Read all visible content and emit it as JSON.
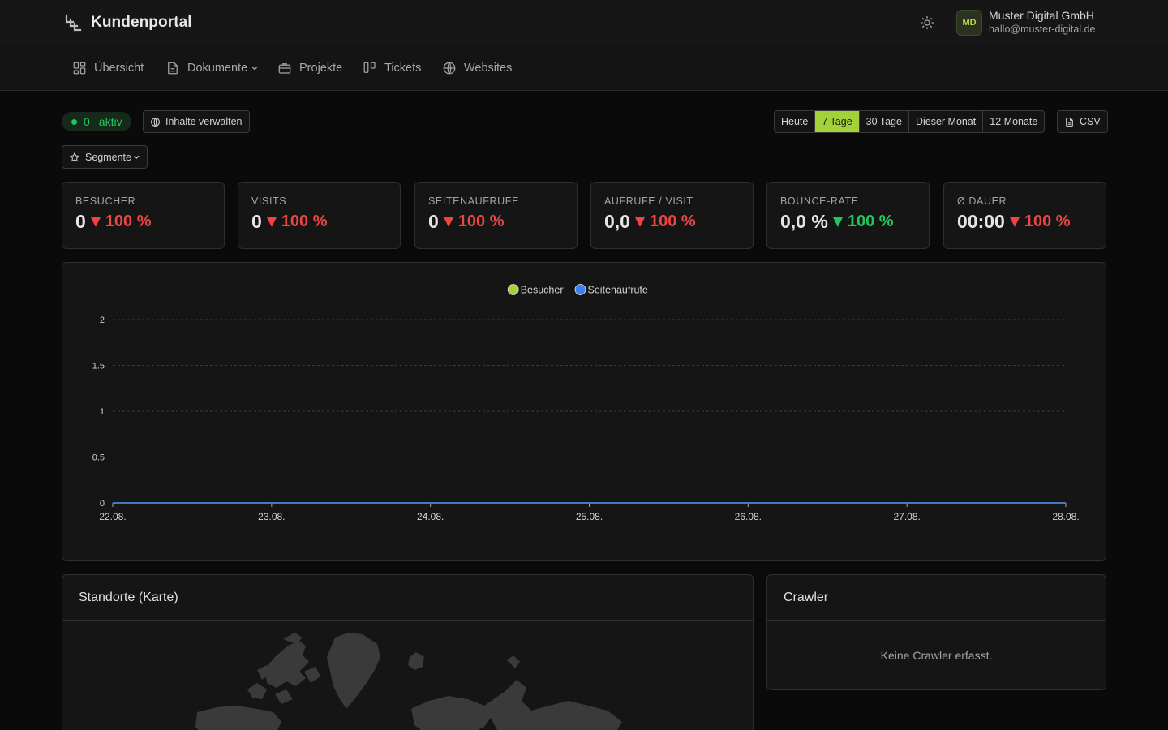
{
  "app": {
    "title": "Kundenportal"
  },
  "account": {
    "initials": "MD",
    "name": "Muster Digital GmbH",
    "email": "hallo@muster-digital.de"
  },
  "nav": {
    "items": [
      {
        "label": "Übersicht",
        "icon": "dashboard-icon"
      },
      {
        "label": "Dokumente",
        "icon": "document-icon",
        "has_dropdown": true
      },
      {
        "label": "Projekte",
        "icon": "briefcase-icon"
      },
      {
        "label": "Tickets",
        "icon": "kanban-icon"
      },
      {
        "label": "Websites",
        "icon": "globe-icon"
      }
    ]
  },
  "toolbar": {
    "live_count": "0",
    "live_label": "aktiv",
    "manage_content_label": "Inhalte verwalten",
    "segments_label": "Segmente",
    "ranges": [
      "Heute",
      "7 Tage",
      "30 Tage",
      "Dieser Monat",
      "12 Monate"
    ],
    "active_range": "7 Tage",
    "csv_label": "CSV"
  },
  "kpis": [
    {
      "label": "Besucher",
      "value": "0",
      "delta": "100 %",
      "trend": "down",
      "color": "#ef4444"
    },
    {
      "label": "Visits",
      "value": "0",
      "delta": "100 %",
      "trend": "down",
      "color": "#ef4444"
    },
    {
      "label": "Seitenaufrufe",
      "value": "0",
      "delta": "100 %",
      "trend": "down",
      "color": "#ef4444"
    },
    {
      "label": "Aufrufe / Visit",
      "value": "0,0",
      "delta": "100 %",
      "trend": "down",
      "color": "#ef4444"
    },
    {
      "label": "Bounce-Rate",
      "value": "0,0 %",
      "delta": "100 %",
      "trend": "down",
      "color": "#22c55e"
    },
    {
      "label": "Ø Dauer",
      "value": "00:00",
      "delta": "100 %",
      "trend": "down",
      "color": "#ef4444"
    }
  ],
  "chart_data": {
    "type": "line",
    "title": "",
    "xlabel": "",
    "ylabel": "",
    "x": [
      "22.08.",
      "23.08.",
      "24.08.",
      "25.08.",
      "26.08.",
      "27.08.",
      "28.08."
    ],
    "y_ticks": [
      "0",
      "0.5",
      "1",
      "1.5",
      "2"
    ],
    "ylim": [
      0,
      2
    ],
    "grid": true,
    "legend_position": "top-center",
    "series": [
      {
        "name": "Besucher",
        "color": "#a3d13a",
        "values": [
          0,
          0,
          0,
          0,
          0,
          0,
          0
        ]
      },
      {
        "name": "Seitenaufrufe",
        "color": "#3b82f6",
        "values": [
          0,
          0,
          0,
          0,
          0,
          0,
          0
        ]
      }
    ]
  },
  "cards": {
    "map_title": "Standorte (Karte)",
    "crawler_title": "Crawler",
    "crawler_empty": "Keine Crawler erfasst."
  },
  "colors": {
    "accent": "#a3d13a",
    "positive": "#22c55e",
    "negative": "#ef4444",
    "series_2": "#3b82f6"
  }
}
